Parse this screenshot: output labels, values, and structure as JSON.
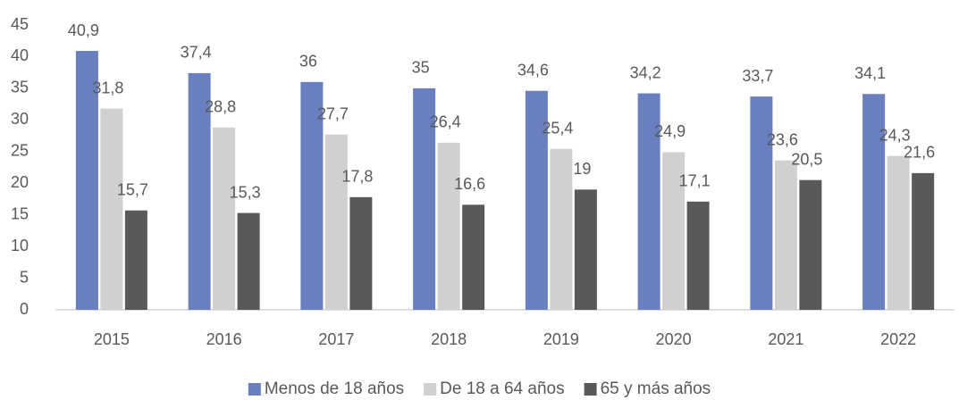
{
  "chart_data": {
    "type": "bar",
    "categories": [
      "2015",
      "2016",
      "2017",
      "2018",
      "2019",
      "2020",
      "2021",
      "2022"
    ],
    "series": [
      {
        "name": "Menos de 18 años",
        "color": "#6a7fbf",
        "values": [
          40.9,
          37.4,
          36,
          35,
          34.6,
          34.2,
          33.7,
          34.1
        ],
        "value_labels": [
          "40,9",
          "37,4",
          "36",
          "35",
          "34,6",
          "34,2",
          "33,7",
          "34,1"
        ]
      },
      {
        "name": "De 18 a 64 años",
        "color": "#d0d0d0",
        "values": [
          31.8,
          28.8,
          27.7,
          26.4,
          25.4,
          24.9,
          23.6,
          24.3
        ],
        "value_labels": [
          "31,8",
          "28,8",
          "27,7",
          "26,4",
          "25,4",
          "24,9",
          "23,6",
          "24,3"
        ]
      },
      {
        "name": "65 y más años",
        "color": "#595959",
        "values": [
          15.7,
          15.3,
          17.8,
          16.6,
          19,
          17.1,
          20.5,
          21.6
        ],
        "value_labels": [
          "15,7",
          "15,3",
          "17,8",
          "16,6",
          "19",
          "17,1",
          "20,5",
          "21,6"
        ]
      }
    ],
    "ylim": [
      0,
      45
    ],
    "yticks": [
      0,
      5,
      10,
      15,
      20,
      25,
      30,
      35,
      40,
      45
    ],
    "grid": false,
    "legend": "bottom"
  }
}
